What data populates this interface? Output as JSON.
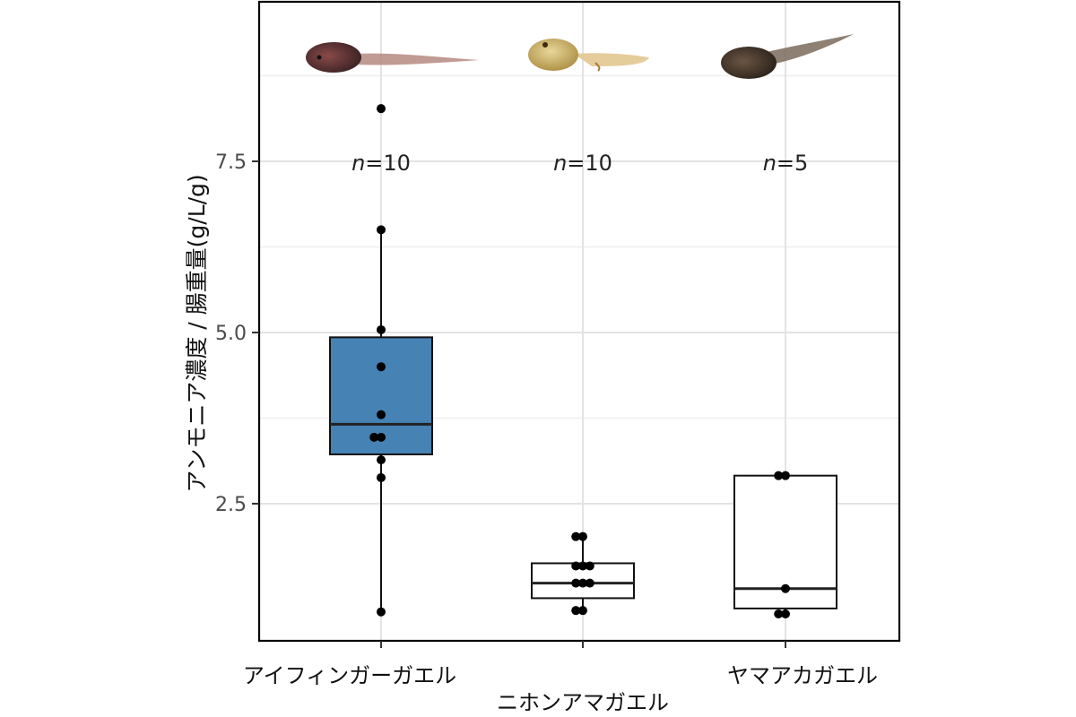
{
  "chart_data": {
    "type": "box",
    "ylabel": "アンモニア濃度 / 腸重量(g/L/g)",
    "xlabel": "",
    "ylim": [
      0.6,
      9.8
    ],
    "yticks": [
      "2.5",
      "5.0",
      "7.5"
    ],
    "ytick_values": [
      2.5,
      5.0,
      7.5
    ],
    "minor_gridlines": [
      3.75,
      6.25,
      8.75
    ],
    "grid": true,
    "categories": [
      "アイフィンガーガエル",
      "ニホンアマガエル",
      "ヤマアカガエル"
    ],
    "sample_sizes": [
      {
        "n_prefix": "n",
        "n_value": "=10"
      },
      {
        "n_prefix": "n",
        "n_value": "=10"
      },
      {
        "n_prefix": "n",
        "n_value": "=5"
      }
    ],
    "boxes": [
      {
        "q1": 3.22,
        "median": 3.66,
        "q3": 4.93,
        "whisker_low": 0.92,
        "whisker_high": 6.5,
        "fill": "#4682b4",
        "points": [
          0.92,
          2.88,
          3.14,
          3.47,
          3.47,
          3.8,
          4.5,
          5.04,
          6.5,
          8.27
        ]
      },
      {
        "q1": 1.12,
        "median": 1.34,
        "q3": 1.63,
        "whisker_low": 0.94,
        "whisker_high": 2.02,
        "fill": "#ffffff",
        "points": [
          0.94,
          0.94,
          1.34,
          1.34,
          1.34,
          1.59,
          1.59,
          2.02,
          2.02,
          1.59
        ]
      },
      {
        "q1": 0.97,
        "median": 1.26,
        "q3": 2.91,
        "whisker_low": 0.89,
        "whisker_high": 2.91,
        "fill": "#ffffff",
        "points": [
          0.89,
          0.89,
          1.26,
          2.91,
          2.91
        ]
      }
    ],
    "tadpole_images": [
      "tadpole-dark-red",
      "tadpole-light-tan",
      "tadpole-dark-brown"
    ]
  }
}
